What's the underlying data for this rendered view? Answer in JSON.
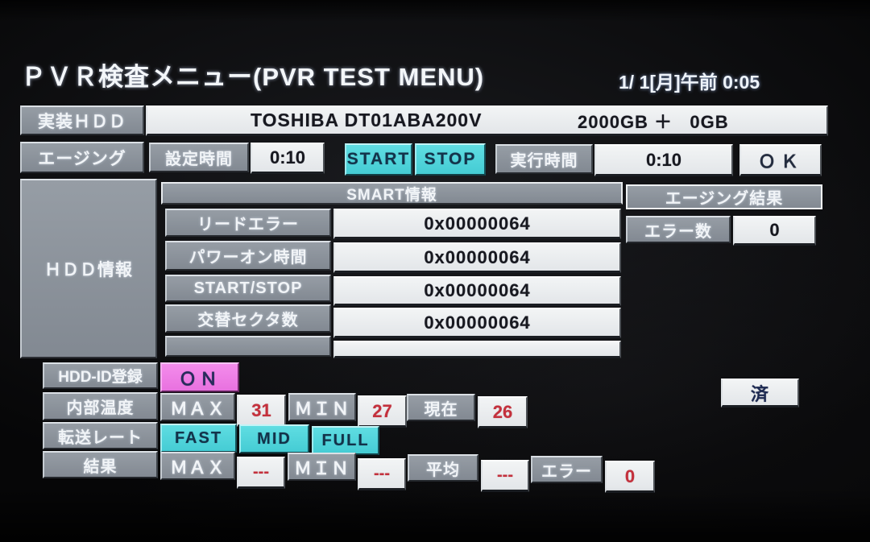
{
  "header": {
    "title": "ＰＶＲ検査メニュー(PVR TEST MENU)",
    "datetime": "1/ 1[月]午前 0:05"
  },
  "mounted_hdd": {
    "label": "実装ＨＤＤ",
    "model": "TOSHIBA DT01ABA200V",
    "capacity": "2000GB ＋   0GB"
  },
  "aging": {
    "label": "エージング",
    "set_time_label": "設定時間",
    "set_time": "0:10",
    "start": "START",
    "stop": "STOP",
    "run_time_label": "実行時間",
    "run_time": "0:10",
    "ok": "ＯＫ"
  },
  "hdd_info": {
    "label": "ＨＤＤ情報",
    "smart_header": "SMART情報",
    "rows": [
      {
        "label": "リードエラー",
        "value": "0x00000064"
      },
      {
        "label": "パワーオン時間",
        "value": "0x00000064"
      },
      {
        "label": "START/STOP",
        "value": "0x00000064"
      },
      {
        "label": "交替セクタ数",
        "value": "0x00000064"
      }
    ],
    "aging_result_header": "エージング結果",
    "error_count_label": "エラー数",
    "error_count": "0"
  },
  "hdd_id": {
    "label": "HDD-ID登録",
    "value": "ＯＮ"
  },
  "temperature": {
    "label": "内部温度",
    "max_label": "ＭＡＸ",
    "max": "31",
    "min_label": "ＭＩＮ",
    "min": "27",
    "current_label": "現在",
    "current": "26"
  },
  "registered_done": "済",
  "transfer_rate": {
    "label": "転送レート",
    "options": [
      "FAST",
      "MID",
      "FULL"
    ]
  },
  "result": {
    "label": "結果",
    "max_label": "ＭＡＸ",
    "max": "---",
    "min_label": "ＭＩＮ",
    "min": "---",
    "avg_label": "平均",
    "avg": "---",
    "error_label": "エラー",
    "error": "0"
  },
  "colors": {
    "gray_cell": "#8b929a",
    "white_cell": "#e9ecef",
    "cyan_button": "#4fd6dc",
    "magenta_on": "#ee7ee6",
    "red_value": "#c4303c",
    "background": "#060607"
  }
}
